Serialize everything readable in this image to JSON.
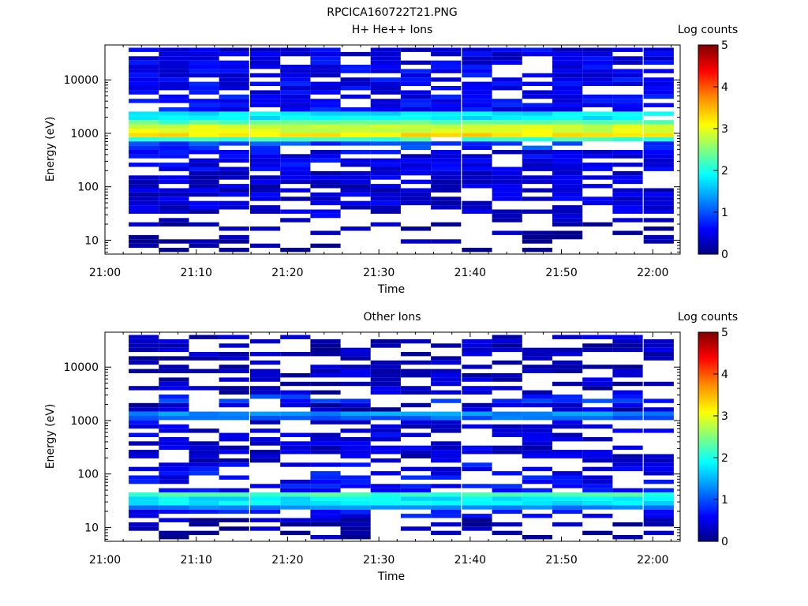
{
  "page": {
    "title": "RPCICA160722T21.PNG"
  },
  "chart_data": [
    {
      "type": "heatmap",
      "title": "H+ He++ Ions",
      "xlabel": "Time",
      "ylabel": "Energy (eV)",
      "x_ticks": [
        "21:00",
        "21:10",
        "21:20",
        "21:30",
        "21:40",
        "21:50",
        "22:00"
      ],
      "y_ticks": [
        "10",
        "100",
        "1000",
        "10000"
      ],
      "y_scale": "log",
      "ylim": [
        5.5,
        45000
      ],
      "xlim_minutes": [
        0,
        63
      ],
      "colorbar": {
        "label": "Log counts",
        "ticks": [
          "0",
          "1",
          "2",
          "3",
          "4",
          "5"
        ],
        "range": [
          0,
          5
        ]
      },
      "time_bins_minutes": [
        2.6,
        5.9,
        9.2,
        12.5,
        15.9,
        19.2,
        22.5,
        25.8,
        29.1,
        32.4,
        35.7,
        39.1,
        42.4,
        45.7,
        49.0,
        52.3,
        55.6,
        59.0
      ],
      "bands": [
        {
          "e_lo": 18000,
          "e_hi": 40000,
          "level": 0.5
        },
        {
          "e_lo": 5500,
          "e_hi": 18000,
          "level": 0.55
        },
        {
          "e_lo": 2600,
          "e_hi": 5500,
          "level": 0.6
        },
        {
          "e_lo": 1800,
          "e_hi": 2600,
          "level": 1.8
        },
        {
          "e_lo": 1400,
          "e_hi": 1800,
          "level": 2.3
        },
        {
          "e_lo": 1100,
          "e_hi": 1400,
          "level": 2.9
        },
        {
          "e_lo": 850,
          "e_hi": 1100,
          "level": 3.25
        },
        {
          "e_lo": 650,
          "e_hi": 850,
          "level": 2.2
        },
        {
          "e_lo": 450,
          "e_hi": 650,
          "level": 0.9
        },
        {
          "e_lo": 200,
          "e_hi": 450,
          "level": 0.5
        },
        {
          "e_lo": 28,
          "e_hi": 200,
          "level": 0.4
        },
        {
          "e_lo": 6,
          "e_hi": 28,
          "level": 0.15
        }
      ],
      "gap_rate": 0.22,
      "low_gap_rate": 0.6,
      "seed": 7
    },
    {
      "type": "heatmap",
      "title": "Other Ions",
      "xlabel": "Time",
      "ylabel": "Energy (eV)",
      "x_ticks": [
        "21:00",
        "21:10",
        "21:20",
        "21:30",
        "21:40",
        "21:50",
        "22:00"
      ],
      "y_ticks": [
        "10",
        "100",
        "1000",
        "10000"
      ],
      "y_scale": "log",
      "ylim": [
        5.5,
        45000
      ],
      "xlim_minutes": [
        0,
        63
      ],
      "colorbar": {
        "label": "Log counts",
        "ticks": [
          "0",
          "1",
          "2",
          "3",
          "4",
          "5"
        ],
        "range": [
          0,
          5
        ]
      },
      "time_bins_minutes": [
        2.6,
        5.9,
        9.2,
        12.5,
        15.9,
        19.2,
        22.5,
        25.8,
        29.1,
        32.4,
        35.7,
        39.1,
        42.4,
        45.7,
        49.0,
        52.3,
        55.6,
        59.0
      ],
      "bands": [
        {
          "e_lo": 3000,
          "e_hi": 40000,
          "level": 0.3
        },
        {
          "e_lo": 2000,
          "e_hi": 3000,
          "level": 0.8
        },
        {
          "e_lo": 1350,
          "e_hi": 2000,
          "level": 0.3
        },
        {
          "e_lo": 1150,
          "e_hi": 1350,
          "level": 1.35
        },
        {
          "e_lo": 950,
          "e_hi": 1150,
          "level": 1.1
        },
        {
          "e_lo": 500,
          "e_hi": 950,
          "level": 0.45
        },
        {
          "e_lo": 150,
          "e_hi": 500,
          "level": 0.4
        },
        {
          "e_lo": 45,
          "e_hi": 150,
          "level": 0.6
        },
        {
          "e_lo": 36,
          "e_hi": 45,
          "level": 2.2
        },
        {
          "e_lo": 28,
          "e_hi": 36,
          "level": 1.8
        },
        {
          "e_lo": 22,
          "e_hi": 28,
          "level": 1.3
        },
        {
          "e_lo": 16,
          "e_hi": 22,
          "level": 0.6
        },
        {
          "e_lo": 6,
          "e_hi": 16,
          "level": 0.2
        }
      ],
      "gap_rate": 0.45,
      "low_gap_rate": 0.55,
      "seed": 23
    }
  ]
}
